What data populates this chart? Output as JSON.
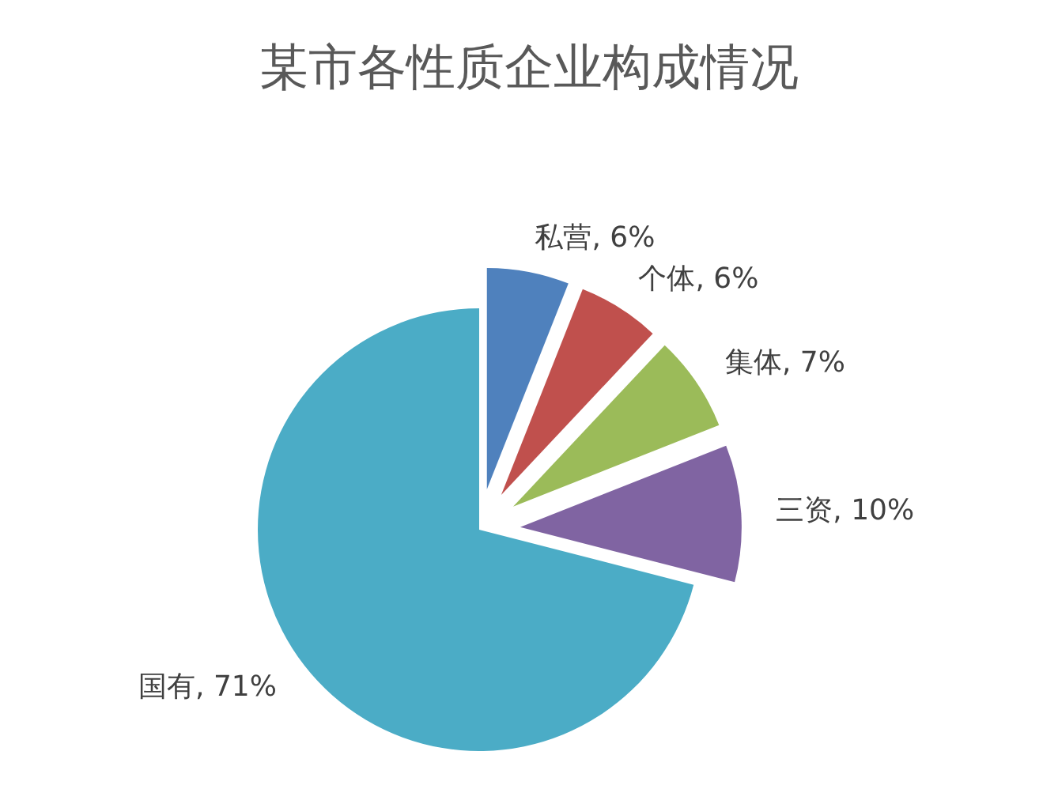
{
  "chart_data": {
    "type": "pie",
    "title": "某市各性质企业构成情况",
    "categories": [
      "私营",
      "个体",
      "集体",
      "三资",
      "国有"
    ],
    "values": [
      6,
      6,
      7,
      10,
      71
    ],
    "value_labels": [
      "6%",
      "6%",
      "7%",
      "10%",
      "71%"
    ],
    "colors": [
      "#4f81bd",
      "#c0504d",
      "#9bbb59",
      "#8064a2",
      "#4bacc6"
    ]
  }
}
